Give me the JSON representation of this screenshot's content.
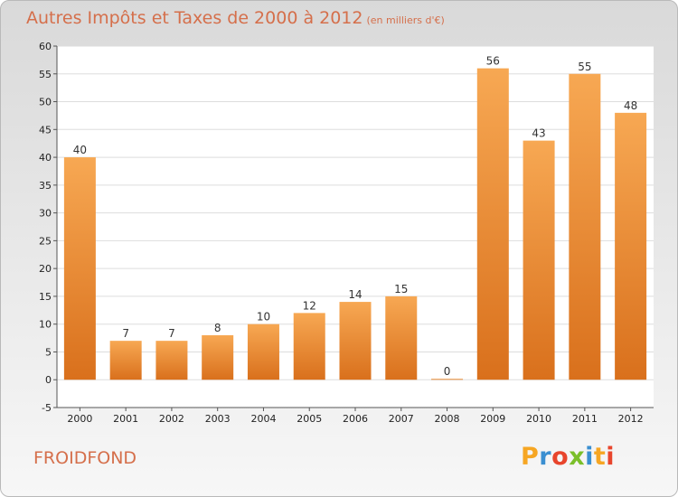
{
  "header": {
    "title": "Autres Impôts et Taxes de 2000 à 2012",
    "subtitle": "(en milliers d'€)"
  },
  "footer": {
    "commune": "FROIDFOND",
    "logo_letters": [
      "P",
      "r",
      "o",
      "x",
      "i",
      "t",
      "i"
    ],
    "logo_colors": [
      "#f6a623",
      "#3a8fd1",
      "#e8452c",
      "#7bbf2a",
      "#3a8fd1",
      "#f6a623",
      "#e8452c"
    ]
  },
  "chart_data": {
    "type": "bar",
    "categories": [
      "2000",
      "2001",
      "2002",
      "2003",
      "2004",
      "2005",
      "2006",
      "2007",
      "2008",
      "2009",
      "2010",
      "2011",
      "2012"
    ],
    "values": [
      40,
      7,
      7,
      8,
      10,
      12,
      14,
      15,
      0,
      56,
      43,
      55,
      48
    ],
    "data_labels": [
      "40",
      "7",
      "7",
      "8",
      "10",
      "12",
      "14",
      "15",
      "0",
      "56",
      "43",
      "55",
      "48"
    ],
    "yticks": [
      "-5",
      "0",
      "5",
      "10",
      "15",
      "20",
      "25",
      "30",
      "35",
      "40",
      "45",
      "50",
      "55",
      "60"
    ],
    "ylim": [
      -5,
      60
    ],
    "grid": "horizontal",
    "bar_color": "#f0963c",
    "title": "Autres Impôts et Taxes de 2000 à 2012",
    "xlabel": "",
    "ylabel": ""
  }
}
